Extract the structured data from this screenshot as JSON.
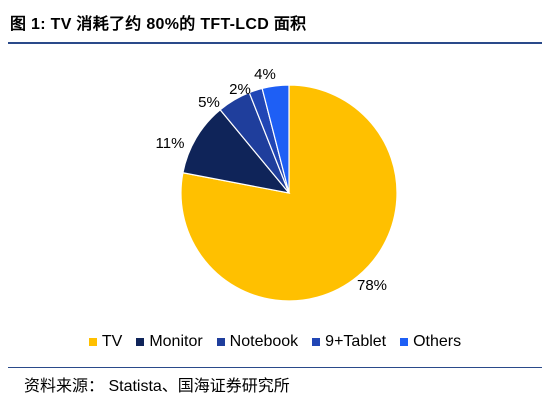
{
  "figure": {
    "title": "图 1:  TV 消耗了约 80%的 TFT-LCD 面积"
  },
  "source": "资料来源：  Statista、国海证券研究所",
  "chart_data": {
    "type": "pie",
    "title": "",
    "slices": [
      {
        "name": "TV",
        "value": 78,
        "label": "78%",
        "color": "#FFC000"
      },
      {
        "name": "Monitor",
        "value": 11,
        "label": "11%",
        "color": "#0F2459"
      },
      {
        "name": "Notebook",
        "value": 5,
        "label": "5%",
        "color": "#1F3E9C"
      },
      {
        "name": "9+Tablet",
        "value": 2,
        "label": "2%",
        "color": "#2146B5"
      },
      {
        "name": "Others",
        "value": 4,
        "label": "4%",
        "color": "#1E5FF5"
      }
    ],
    "start_angle_deg": 90,
    "direction": "clockwise",
    "legend_position": "bottom"
  }
}
